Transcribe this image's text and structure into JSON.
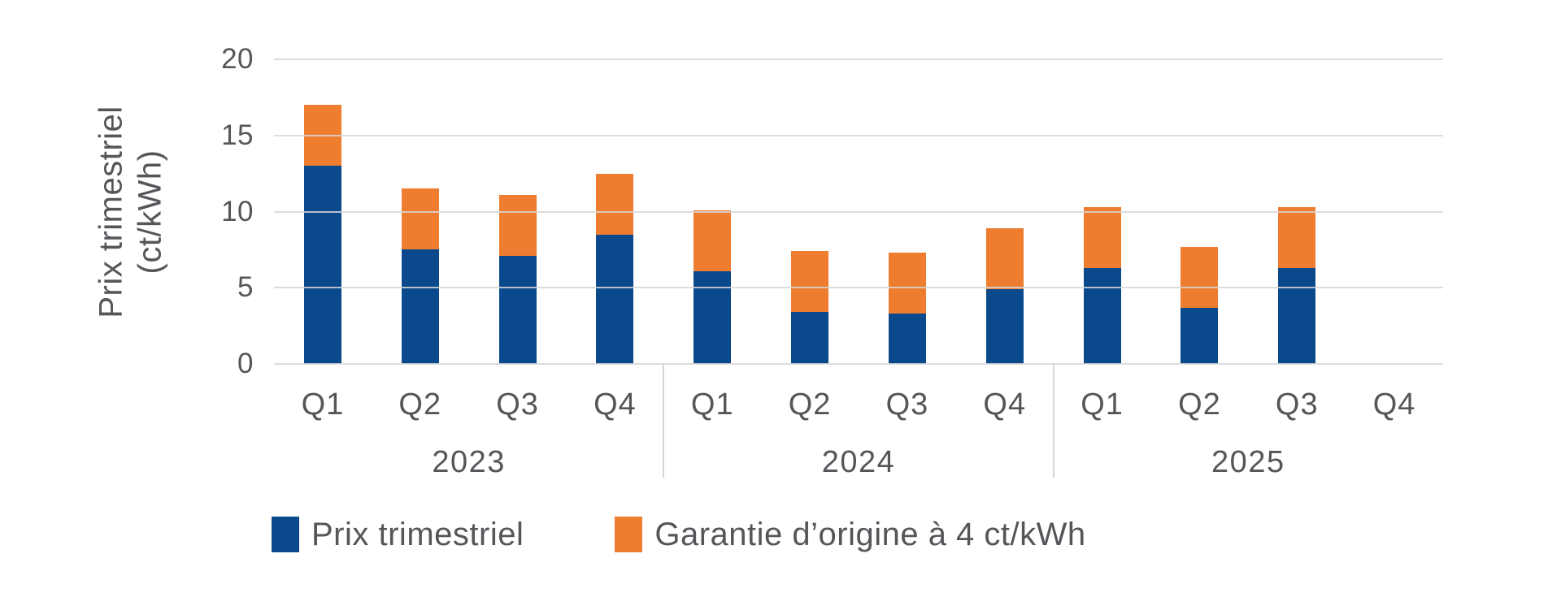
{
  "chart_data": {
    "type": "bar",
    "stacked": true,
    "ylabel_line1": "Prix trimestriel",
    "ylabel_line2": "(ct/kWh)",
    "ylim": [
      0,
      20
    ],
    "y_ticks": [
      0,
      5,
      10,
      15,
      20
    ],
    "grid": true,
    "legend_position": "bottom",
    "groups": [
      {
        "year": "2023",
        "quarters": [
          "Q1",
          "Q2",
          "Q3",
          "Q4"
        ]
      },
      {
        "year": "2024",
        "quarters": [
          "Q1",
          "Q2",
          "Q3",
          "Q4"
        ]
      },
      {
        "year": "2025",
        "quarters": [
          "Q1",
          "Q2",
          "Q3",
          "Q4"
        ]
      }
    ],
    "categories": [
      "Q1 2023",
      "Q2 2023",
      "Q3 2023",
      "Q4 2023",
      "Q1 2024",
      "Q2 2024",
      "Q3 2024",
      "Q4 2024",
      "Q1 2025",
      "Q2 2025",
      "Q3 2025",
      "Q4 2025"
    ],
    "series": [
      {
        "name": "Prix trimestriel",
        "color": "#0A4A8C",
        "values": [
          13.0,
          7.5,
          7.1,
          8.5,
          6.1,
          3.4,
          3.3,
          4.9,
          6.3,
          3.7,
          6.3,
          null
        ]
      },
      {
        "name": "Garantie d’origine à 4 ct/kWh",
        "color": "#EE7D2F",
        "values": [
          4,
          4,
          4,
          4,
          4,
          4,
          4,
          4,
          4,
          4,
          4,
          null
        ]
      }
    ],
    "totals": [
      17.0,
      11.5,
      11.1,
      12.5,
      10.1,
      7.4,
      7.3,
      8.9,
      10.3,
      7.7,
      10.3,
      null
    ]
  },
  "colors": {
    "bar_blue": "#0A4A8C",
    "bar_orange": "#EE7D2F",
    "gridline": "#D6D6D6",
    "text": "#54565A",
    "background": "#FFFFFF"
  }
}
